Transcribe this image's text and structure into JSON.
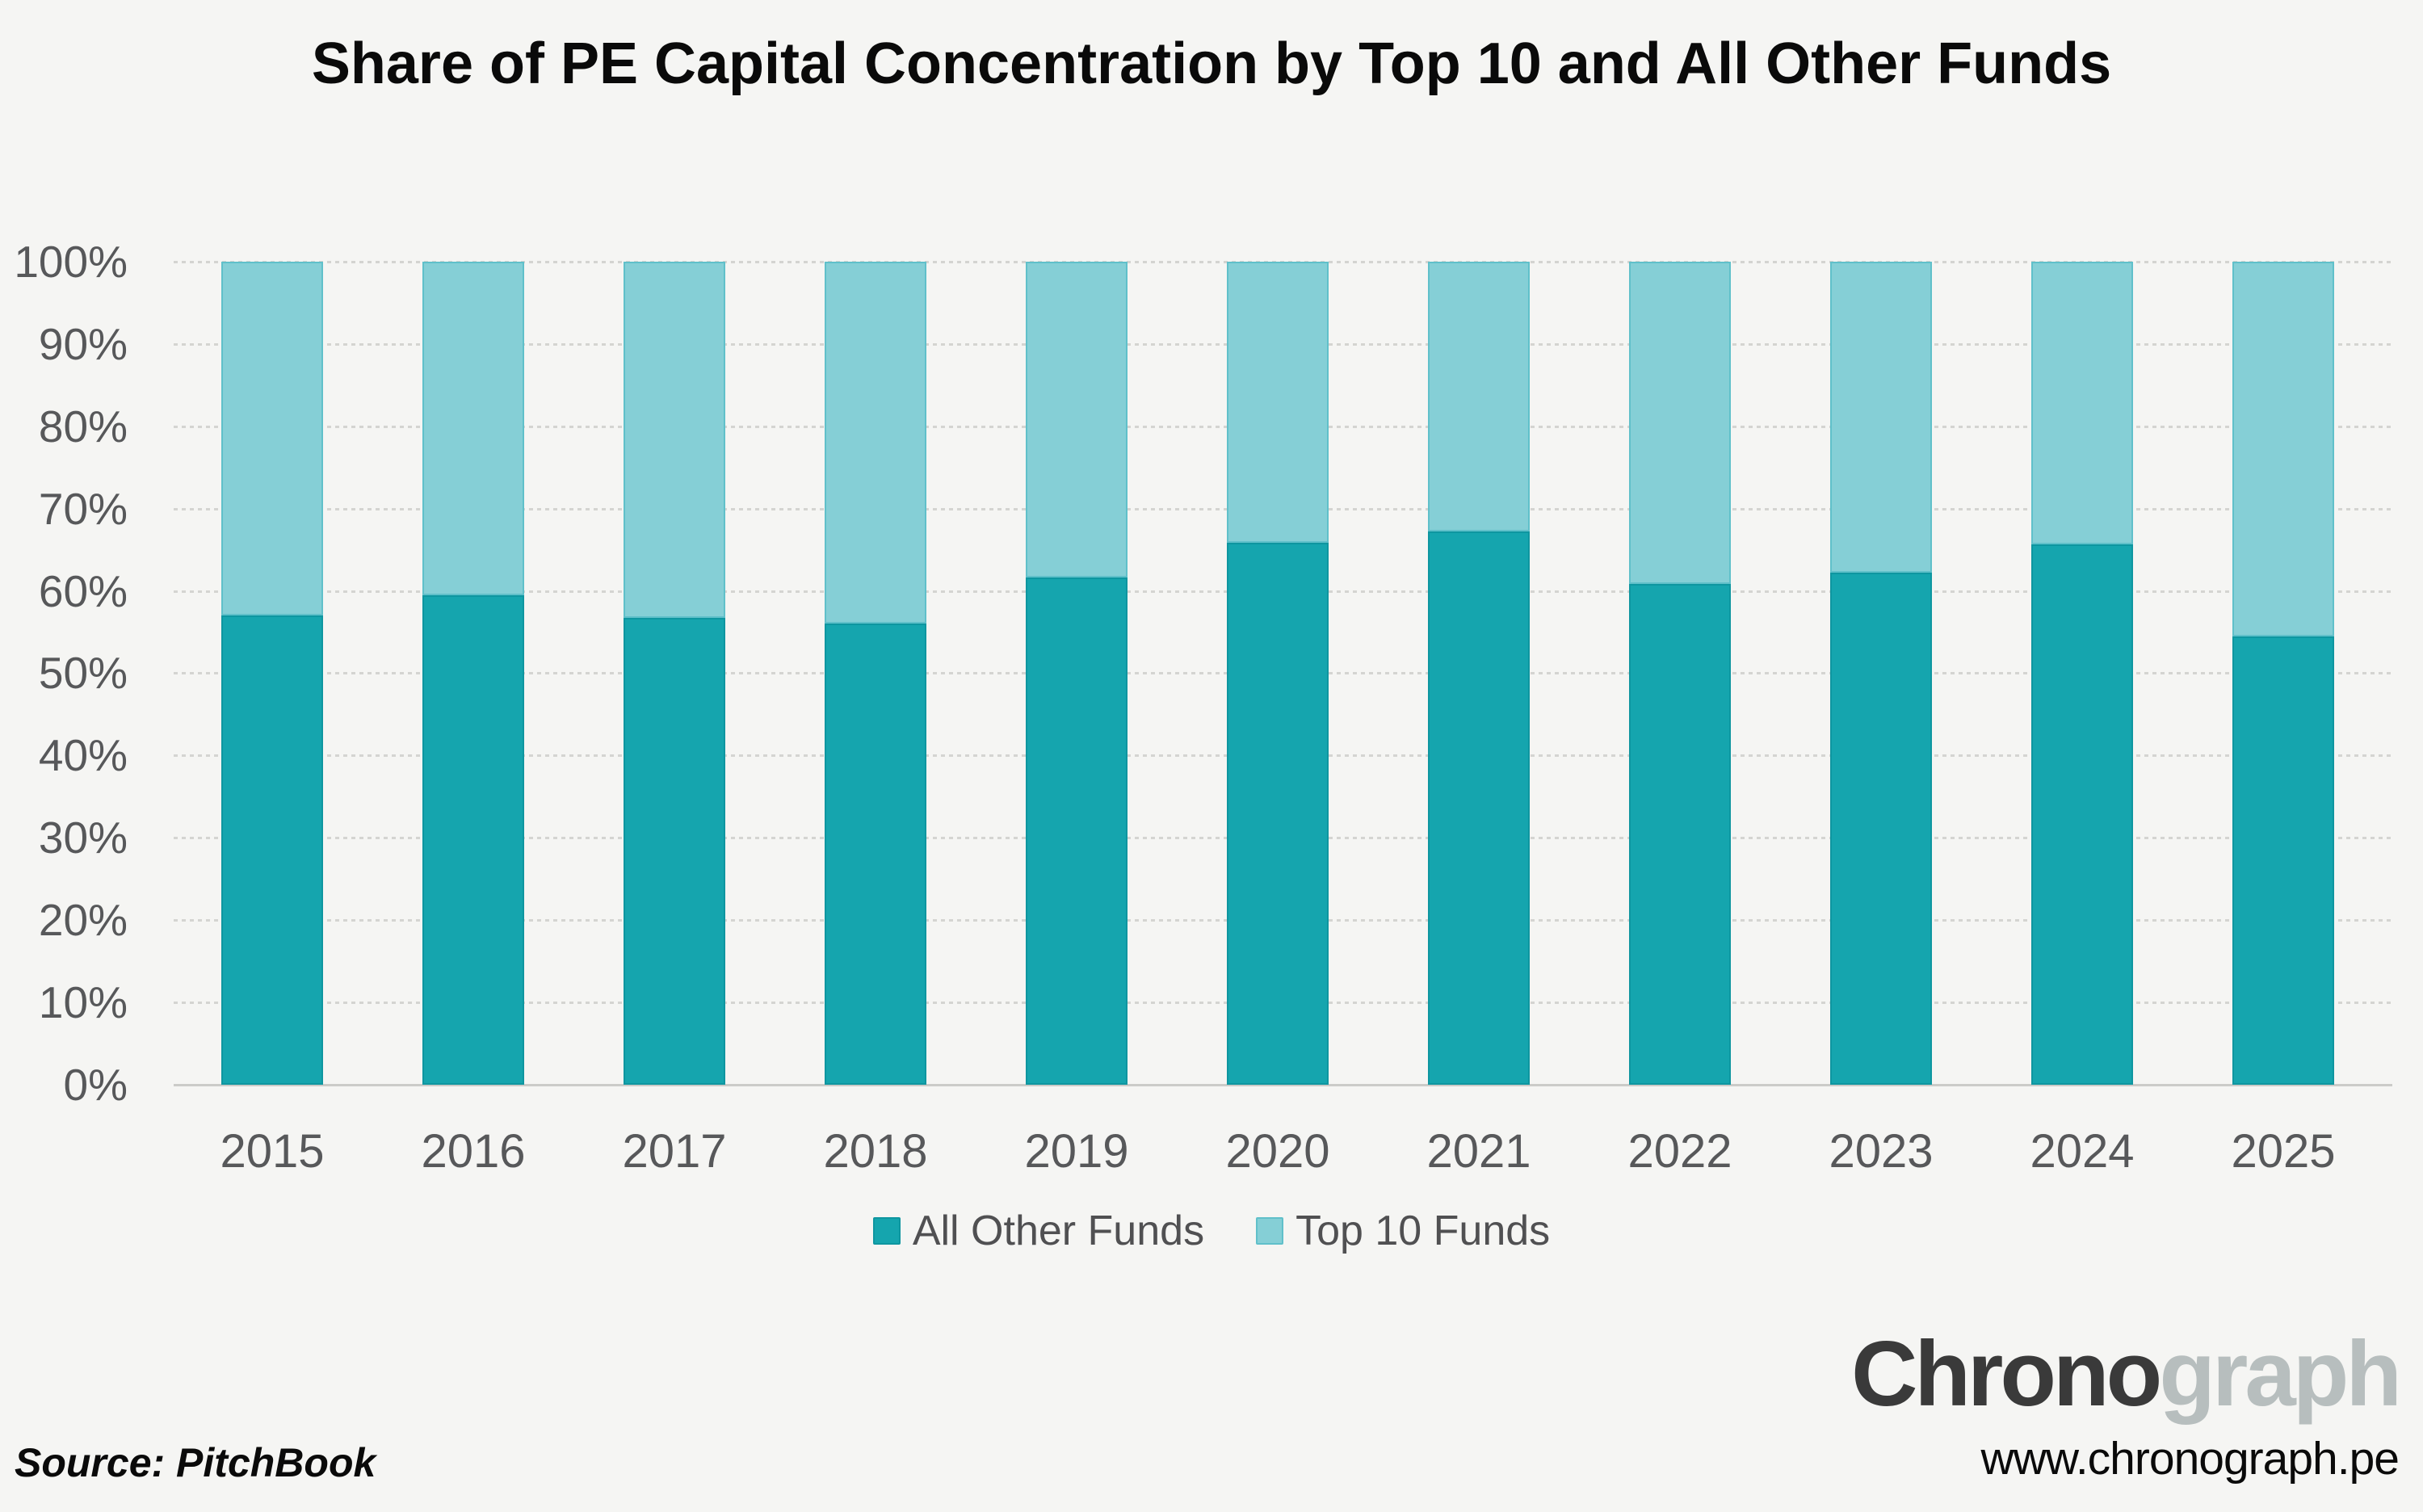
{
  "title": "Share of PE Capital Concentration by Top 10 and All Other Funds",
  "source": "Source: PitchBook",
  "branding": {
    "logo_primary": "Chrono",
    "logo_secondary": "graph",
    "website": "www.chronograph.pe"
  },
  "colors": {
    "background": "#f5f5f3",
    "all_other_funds": "#15a5ae",
    "all_other_funds_border": "#0e96a0",
    "top_10_funds": "#85cfd6",
    "top_10_funds_border": "#60c0ca",
    "gridline": "#d4d4d1",
    "axis_line": "#cbcbc8",
    "axis_text": "#57585a",
    "legend_text": "#505052",
    "title_text": "#0a0a0a",
    "footer_text": "#0a0a0a",
    "logo_primary": "#3a3a3a",
    "logo_secondary": "#b7bebe"
  },
  "chart_data": {
    "type": "bar",
    "stacked": true,
    "stack_total_percent": 100,
    "title": "Share of PE Capital Concentration by Top 10 and All Other Funds",
    "categories": [
      "2015",
      "2016",
      "2017",
      "2018",
      "2019",
      "2020",
      "2021",
      "2022",
      "2023",
      "2024",
      "2025"
    ],
    "series": [
      {
        "name": "All Other Funds",
        "color_key": "all_other_funds",
        "border_key": "all_other_funds_border",
        "values": [
          57.0,
          59.5,
          56.7,
          56.0,
          61.6,
          65.8,
          67.2,
          60.8,
          62.2,
          65.7,
          54.5
        ]
      },
      {
        "name": "Top 10 Funds",
        "color_key": "top_10_funds",
        "border_key": "top_10_funds_border",
        "values": [
          43.0,
          40.5,
          43.3,
          44.0,
          38.4,
          34.2,
          32.8,
          39.2,
          37.8,
          34.3,
          45.5
        ]
      }
    ],
    "xlabel": "",
    "ylabel": "",
    "y_ticks": [
      "0%",
      "10%",
      "20%",
      "30%",
      "40%",
      "50%",
      "60%",
      "70%",
      "80%",
      "90%",
      "100%"
    ],
    "ylim": [
      0,
      100
    ],
    "grid": "horizontal-dotted",
    "legend_position": "bottom"
  }
}
